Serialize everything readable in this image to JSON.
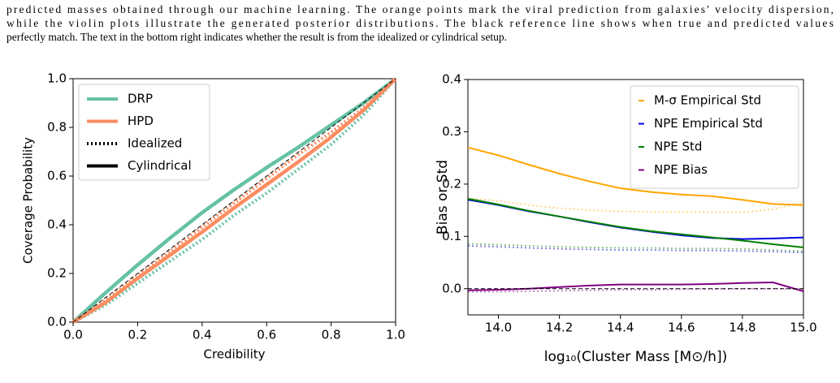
{
  "caption": [
    "predicted masses obtained through our machine learning. The orange points mark the viral prediction from galaxies' velocity dispersion,",
    "while the violin plots illustrate the generated posterior distributions. The black reference line shows when true and predicted values",
    "perfectly match. The text in the bottom right indicates whether the result is from the idealized or cylindrical setup."
  ],
  "chart_data": [
    {
      "type": "line",
      "xlabel": "Credibility",
      "ylabel": "Coverage Probability",
      "x": [
        0,
        0.1,
        0.2,
        0.3,
        0.4,
        0.5,
        0.6,
        0.7,
        0.8,
        0.9,
        1.0
      ],
      "xlim": [
        0,
        1
      ],
      "ylim": [
        0,
        1
      ],
      "xticks": [
        {
          "value": 0,
          "label": "0.0"
        },
        {
          "value": 0.2,
          "label": "0.2"
        },
        {
          "value": 0.4,
          "label": "0.4"
        },
        {
          "value": 0.6,
          "label": "0.6"
        },
        {
          "value": 0.8,
          "label": "0.8"
        },
        {
          "value": 1,
          "label": "1.0"
        }
      ],
      "yticks": [
        {
          "value": 0,
          "label": "0.0"
        },
        {
          "value": 0.2,
          "label": "0.2"
        },
        {
          "value": 0.4,
          "label": "0.4"
        },
        {
          "value": 0.6,
          "label": "0.6"
        },
        {
          "value": 0.8,
          "label": "0.8"
        },
        {
          "value": 1,
          "label": "1.0"
        }
      ],
      "legend": [
        {
          "label": "DRP",
          "color": "#66c2a5",
          "style": "solid"
        },
        {
          "label": "HPD",
          "color": "#fc8d62",
          "style": "solid"
        },
        {
          "label": "Idealized",
          "color": "#000000",
          "style": "dotted"
        },
        {
          "label": "Cylindrical",
          "color": "#000000",
          "style": "solid"
        }
      ],
      "series": [
        {
          "color": "#66c2a5",
          "style": "dotted",
          "values": [
            0,
            0.07,
            0.16,
            0.25,
            0.34,
            0.44,
            0.53,
            0.63,
            0.73,
            0.85,
            1.0
          ]
        },
        {
          "color": "#66c2a5",
          "style": "solid",
          "values": [
            0,
            0.12,
            0.235,
            0.345,
            0.45,
            0.545,
            0.635,
            0.72,
            0.81,
            0.9,
            1.0
          ]
        },
        {
          "color": "#fc8d62",
          "style": "dotted",
          "values": [
            0,
            0.09,
            0.19,
            0.29,
            0.39,
            0.49,
            0.59,
            0.69,
            0.78,
            0.88,
            1.0
          ]
        },
        {
          "color": "#fc8d62",
          "style": "solid",
          "values": [
            0,
            0.08,
            0.18,
            0.275,
            0.37,
            0.47,
            0.565,
            0.66,
            0.76,
            0.87,
            1.0
          ]
        },
        {
          "color": "#000000",
          "style": "dashed",
          "values": [
            0,
            0.1,
            0.2,
            0.3,
            0.4,
            0.5,
            0.6,
            0.7,
            0.8,
            0.9,
            1.0
          ]
        }
      ]
    },
    {
      "type": "line",
      "xlabel": "log₁₀(Cluster Mass [M⊙/h])",
      "ylabel": "Bias or Std",
      "x": [
        13.9,
        14.0,
        14.1,
        14.2,
        14.3,
        14.4,
        14.5,
        14.6,
        14.7,
        14.8,
        14.9,
        15.0
      ],
      "xlim": [
        13.9,
        15.0
      ],
      "ylim": [
        -0.05,
        0.4
      ],
      "xticks": [
        {
          "value": 14,
          "label": "14.0"
        },
        14.2,
        14.4,
        14.6,
        14.8,
        {
          "value": 15,
          "label": "15.0"
        }
      ],
      "yticks": [
        {
          "value": 0,
          "label": "0.0"
        },
        0.1,
        0.2,
        0.3,
        0.4
      ],
      "series": [
        {
          "name": "M-σ Empirical Std",
          "color": "#ffa500",
          "style": "solid",
          "values": [
            0.27,
            0.255,
            0.237,
            0.22,
            0.205,
            0.192,
            0.185,
            0.18,
            0.177,
            0.17,
            0.162,
            0.16
          ]
        },
        {
          "color": "#ffa500",
          "style": "dotted",
          "values": [
            0.173,
            0.168,
            0.16,
            0.154,
            0.15,
            0.148,
            0.147,
            0.147,
            0.146,
            0.146,
            0.152,
            0.165
          ]
        },
        {
          "name": "NPE Empirical Std",
          "color": "#0000dd",
          "style": "solid",
          "values": [
            0.17,
            0.16,
            0.148,
            0.138,
            0.127,
            0.117,
            0.109,
            0.102,
            0.097,
            0.095,
            0.096,
            0.098
          ]
        },
        {
          "color": "#0000dd",
          "style": "dotted",
          "values": [
            0.082,
            0.08,
            0.078,
            0.076,
            0.075,
            0.074,
            0.074,
            0.073,
            0.073,
            0.072,
            0.071,
            0.069
          ]
        },
        {
          "name": "NPE Std",
          "color": "#008000",
          "style": "solid",
          "values": [
            0.172,
            0.161,
            0.149,
            0.138,
            0.128,
            0.118,
            0.11,
            0.104,
            0.098,
            0.092,
            0.085,
            0.079
          ]
        },
        {
          "color": "#008000",
          "style": "dotted",
          "values": [
            0.086,
            0.084,
            0.082,
            0.08,
            0.079,
            0.078,
            0.078,
            0.077,
            0.077,
            0.076,
            0.074,
            0.072
          ]
        },
        {
          "name": "NPE Bias",
          "color": "#800080",
          "style": "solid",
          "values": [
            -0.003,
            -0.002,
            0,
            0.003,
            0.006,
            0.008,
            0.008,
            0.008,
            0.009,
            0.011,
            0.012,
            -0.005
          ]
        },
        {
          "color": "#800080",
          "style": "dotted",
          "values": [
            -0.006,
            -0.006,
            -0.005,
            -0.004,
            -0.003,
            -0.002,
            -0.002,
            -0.001,
            -0.001,
            0,
            0,
            -0.001
          ]
        },
        {
          "color": "#000000",
          "style": "dashed",
          "values": [
            0,
            0,
            0,
            0,
            0,
            0,
            0,
            0,
            0,
            0,
            0,
            0
          ]
        }
      ]
    }
  ]
}
